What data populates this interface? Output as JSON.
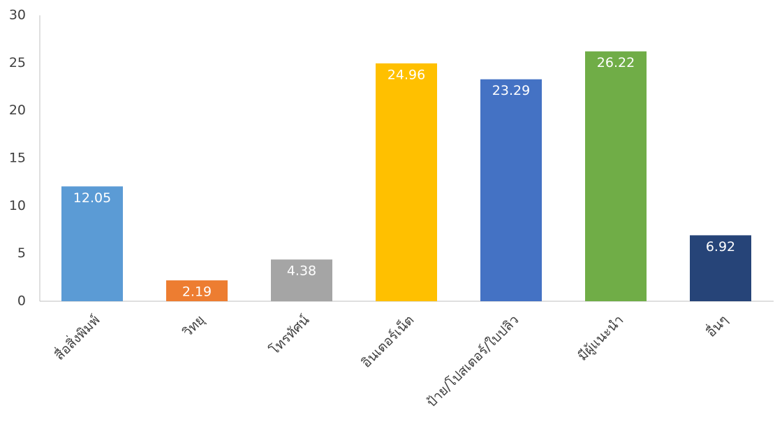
{
  "chart_data": {
    "type": "bar",
    "categories": [
      "สื่อสิ่งพิมพ์",
      "วิทยุ",
      "โทรทัศน์",
      "อินเตอร์เน็ต",
      "ป้าย/โปสเตอร์/ใบปลิว",
      "มีผู้แนะนำ",
      "อื่นๆ"
    ],
    "values": [
      12.05,
      2.19,
      4.38,
      24.96,
      23.29,
      26.22,
      6.92
    ],
    "colors": [
      "#5b9bd5",
      "#ed7d31",
      "#a5a5a5",
      "#ffc000",
      "#4472c4",
      "#70ad47",
      "#264478"
    ],
    "ylim": [
      0,
      30
    ],
    "yticks": [
      0,
      5,
      10,
      15,
      20,
      25,
      30
    ],
    "grid": false
  }
}
